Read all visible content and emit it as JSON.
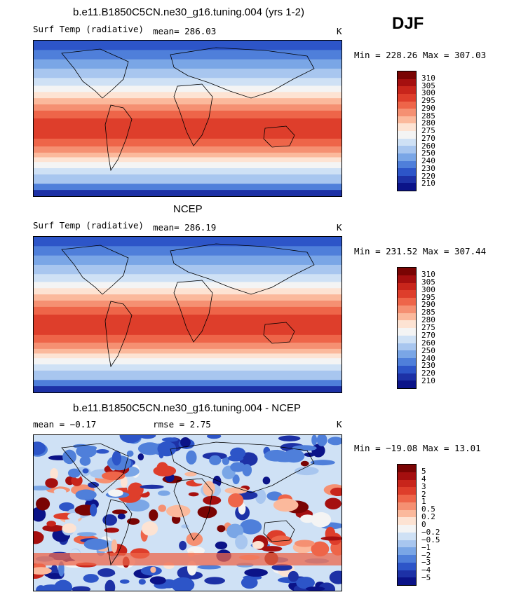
{
  "season": "DJF",
  "panels": [
    {
      "title": "b.e11.B1850C5CN.ne30_g16.tuning.004 (yrs 1-2)",
      "left_label": "Surf Temp (radiative)",
      "center_label": "mean= 286.03",
      "right_label": "K",
      "minmax": "Min = 228.26 Max = 307.03",
      "map_kind": "model",
      "colorbar_labels": [
        "310",
        "305",
        "300",
        "295",
        "290",
        "285",
        "280",
        "275",
        "270",
        "260",
        "250",
        "240",
        "230",
        "220",
        "210"
      ]
    },
    {
      "title": "NCEP",
      "left_label": "Surf Temp (radiative)",
      "center_label": "mean= 286.19",
      "right_label": "K",
      "minmax": "Min = 231.52 Max = 307.44",
      "map_kind": "obs",
      "colorbar_labels": [
        "310",
        "305",
        "300",
        "295",
        "290",
        "285",
        "280",
        "275",
        "270",
        "260",
        "250",
        "240",
        "230",
        "220",
        "210"
      ]
    },
    {
      "title": "b.e11.B1850C5CN.ne30_g16.tuning.004 - NCEP",
      "left_label": "mean =   −0.17",
      "center_label": "rmse =    2.75",
      "right_label": "K",
      "minmax": "Min = −19.08 Max =  13.01",
      "map_kind": "diff",
      "colorbar_labels": [
        "5",
        "4",
        "3",
        "2",
        "1",
        "0.5",
        "0.2",
        "0",
        "−0.2",
        "−0.5",
        "−1",
        "−2",
        "−3",
        "−4",
        "−5"
      ]
    }
  ],
  "colors": {
    "temp_scale": [
      "#7a0403",
      "#a50f0f",
      "#c8251b",
      "#de3e2b",
      "#ee6549",
      "#f59072",
      "#fbb99c",
      "#fde3d3",
      "#f4f4f4",
      "#cfe1f5",
      "#a8c6ef",
      "#7aa6e6",
      "#4f7fda",
      "#2d55c8",
      "#1d31a6",
      "#0b1388"
    ],
    "diff_scale": [
      "#7a0403",
      "#a50f0f",
      "#c8251b",
      "#de3e2b",
      "#ee6549",
      "#f59072",
      "#fbb99c",
      "#fde3d3",
      "#f4f4f4",
      "#cfe1f5",
      "#a8c6ef",
      "#7aa6e6",
      "#4f7fda",
      "#2d55c8",
      "#1d31a6",
      "#0b1388"
    ]
  }
}
